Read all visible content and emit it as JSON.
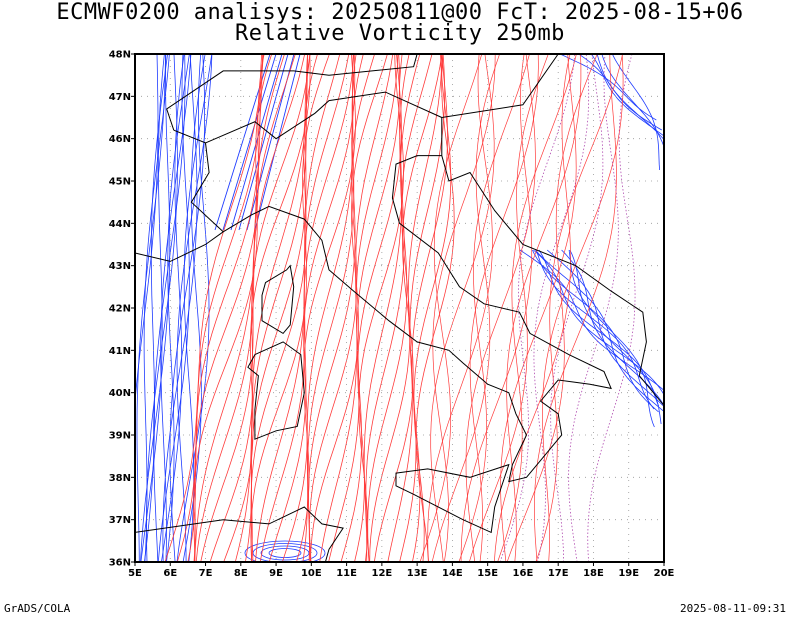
{
  "title_line1": "ECMWF0200 analisys: 20250811@00 FcT: 2025-08-15+06",
  "title_line2": "Relative Vorticity 250mb",
  "footer_left": "GrADS/COLA",
  "footer_right": "2025-08-11-09:31",
  "map": {
    "lon_min": 5,
    "lon_max": 20,
    "lat_min": 36,
    "lat_max": 48,
    "lon_labels": [
      "5E",
      "6E",
      "7E",
      "8E",
      "9E",
      "10E",
      "11E",
      "12E",
      "13E",
      "14E",
      "15E",
      "16E",
      "17E",
      "18E",
      "19E",
      "20E"
    ],
    "lat_labels": [
      "36N",
      "37N",
      "38N",
      "39N",
      "40N",
      "41N",
      "42N",
      "43N",
      "44N",
      "45N",
      "46N",
      "47N",
      "48N"
    ],
    "grid": true,
    "colors": {
      "positive": "#ff3b3b",
      "negative": "#1f3cff",
      "coast": "#000000",
      "grid": "#999999",
      "zero": "#b04ab0"
    }
  }
}
